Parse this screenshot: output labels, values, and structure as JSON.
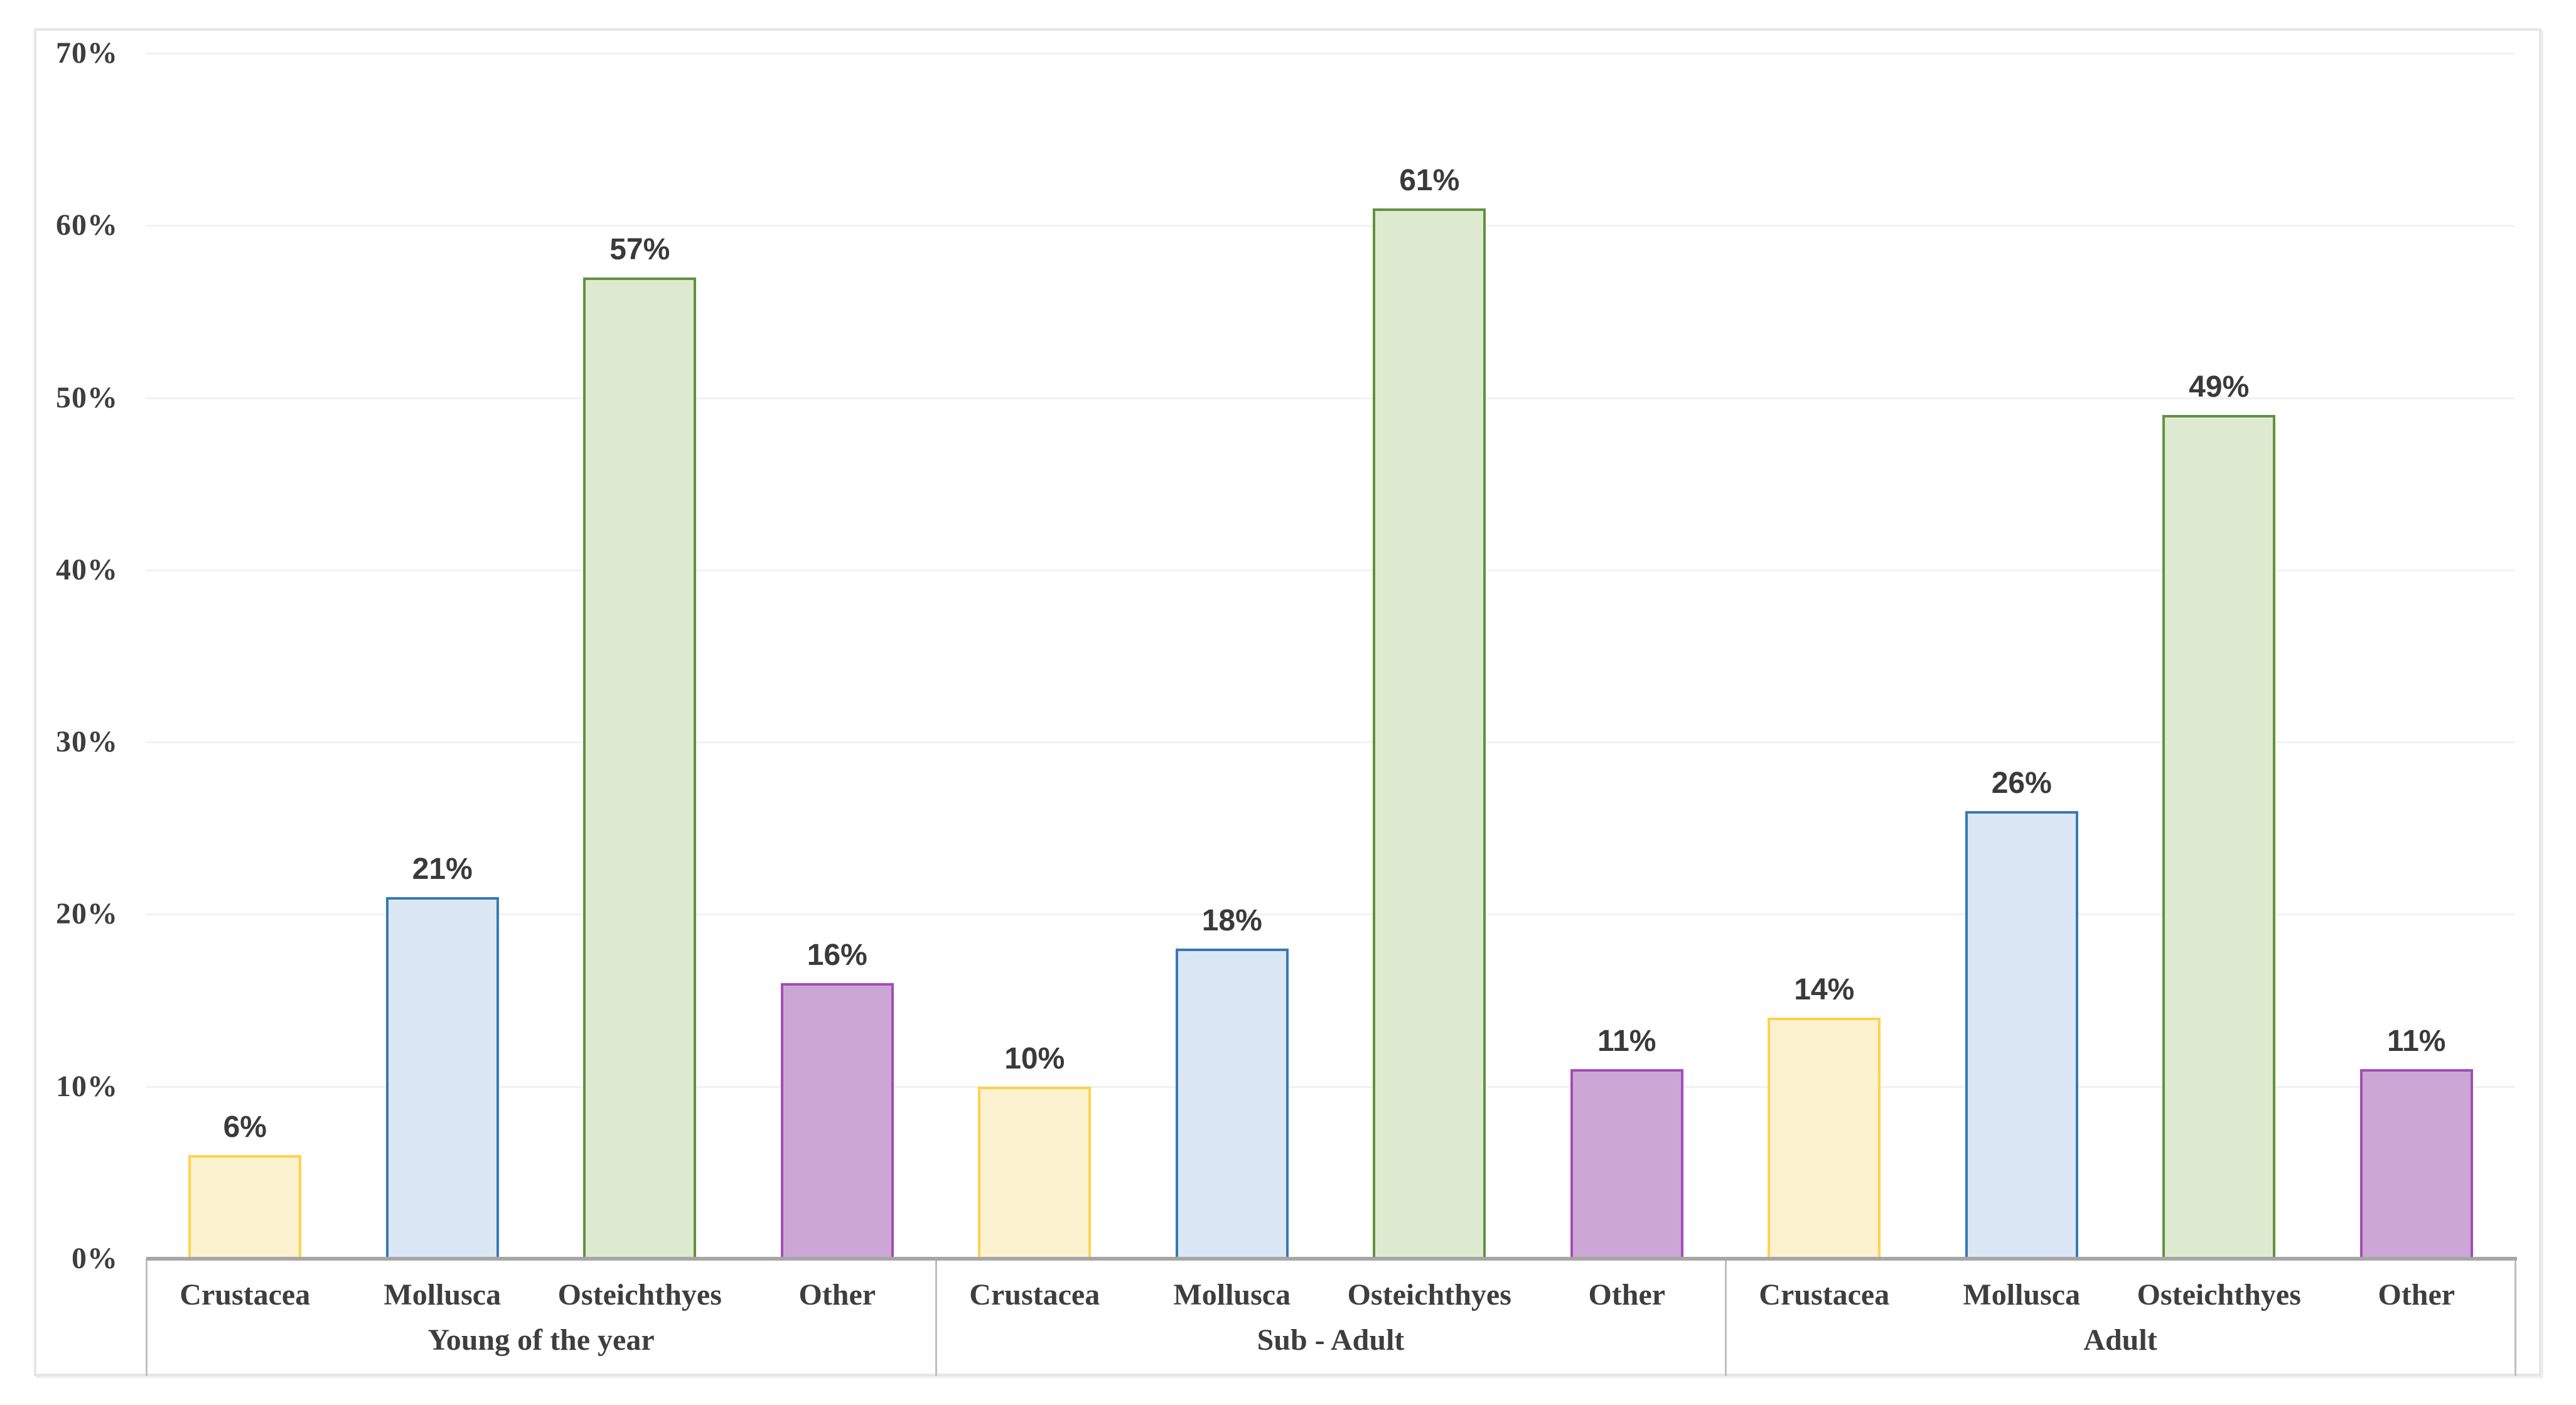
{
  "chart_data": {
    "type": "bar",
    "title": "",
    "xlabel": "",
    "ylabel": "",
    "ylim": [
      0,
      70
    ],
    "ytick_step": 10,
    "ytick_labels": [
      "0%",
      "10%",
      "20%",
      "30%",
      "40%",
      "50%",
      "60%",
      "70%"
    ],
    "grid": true,
    "legend_position": "none",
    "categories": [
      "Crustacea",
      "Mollusca",
      "Osteichthyes",
      "Other"
    ],
    "series_styles": [
      {
        "name": "Crustacea",
        "fill": "#fdf2cf",
        "border": "#ffd24c"
      },
      {
        "name": "Mollusca",
        "fill": "#dbe7f4",
        "border": "#3679b7"
      },
      {
        "name": "Osteichthyes",
        "fill": "#deeacf",
        "border": "#61913f"
      },
      {
        "name": "Other",
        "fill": "#cca7d6",
        "border": "#a44cb8"
      }
    ],
    "groups": [
      {
        "label": "Young of the year",
        "values": [
          6,
          21,
          57,
          16
        ],
        "value_labels": [
          "6%",
          "21%",
          "57%",
          "16%"
        ]
      },
      {
        "label": "Sub - Adult",
        "values": [
          10,
          18,
          61,
          11
        ],
        "value_labels": [
          "10%",
          "18%",
          "61%",
          "11%"
        ]
      },
      {
        "label": "Adult",
        "values": [
          14,
          26,
          49,
          11
        ],
        "value_labels": [
          "14%",
          "26%",
          "49%",
          "11%"
        ]
      }
    ],
    "axis_colors": {
      "gridline": "#f1f1f1",
      "axis_line": "#a6a6a6",
      "category_box_border": "#bfbfbf",
      "frame_border": "#e6e6e6",
      "text": "#3e3e3e",
      "value_label_text": "#3a3a3a"
    }
  }
}
